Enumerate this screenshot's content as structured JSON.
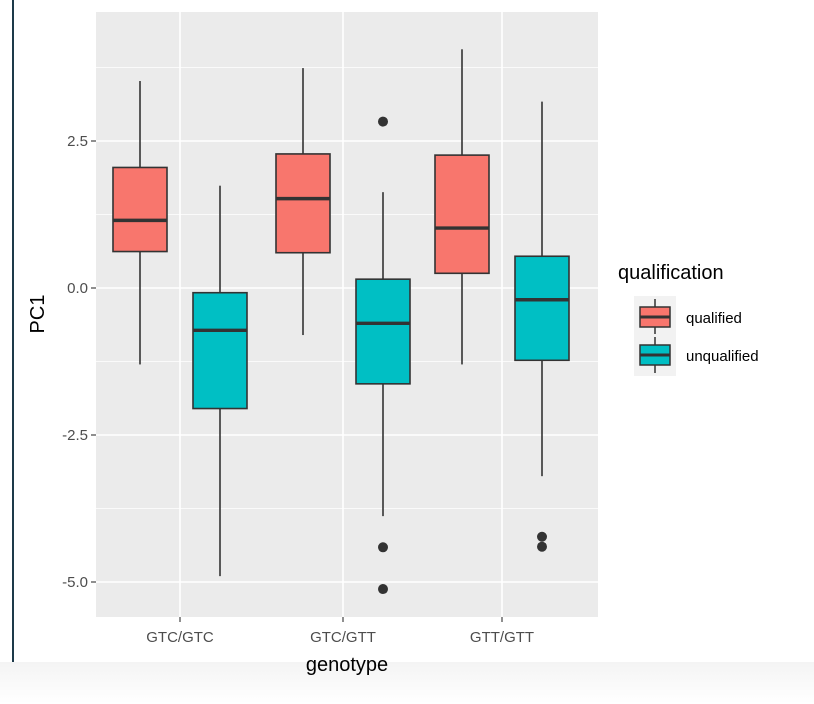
{
  "chart_data": {
    "type": "boxplot",
    "xlabel": "genotype",
    "ylabel": "PC1",
    "categories": [
      "GTC/GTC",
      "GTC/GTT",
      "GTT/GTT"
    ],
    "ylim": [
      -5.5,
      4.6
    ],
    "yticks": [
      2.5,
      0.0,
      -2.5,
      -5.0
    ],
    "ytick_labels": [
      "2.5",
      "0.0",
      "-2.5",
      "-5.0"
    ],
    "grid": true,
    "legend": {
      "title": "qualification",
      "position": "right"
    },
    "series": [
      {
        "name": "qualified",
        "color": "#F8766D",
        "boxes": [
          {
            "category": "GTC/GTC",
            "whisker_low": -1.3,
            "q1": 0.62,
            "median": 1.15,
            "q3": 2.05,
            "whisker_high": 3.52,
            "outliers": []
          },
          {
            "category": "GTC/GTT",
            "whisker_low": -0.8,
            "q1": 0.6,
            "median": 1.52,
            "q3": 2.28,
            "whisker_high": 3.74,
            "outliers": []
          },
          {
            "category": "GTT/GTT",
            "whisker_low": -1.3,
            "q1": 0.25,
            "median": 1.02,
            "q3": 2.26,
            "whisker_high": 4.06,
            "outliers": []
          }
        ]
      },
      {
        "name": "unqualified",
        "color": "#00BFC4",
        "boxes": [
          {
            "category": "GTC/GTC",
            "whisker_low": -4.9,
            "q1": -2.05,
            "median": -0.72,
            "q3": -0.08,
            "whisker_high": 1.74,
            "outliers": []
          },
          {
            "category": "GTC/GTT",
            "whisker_low": -3.88,
            "q1": -1.63,
            "median": -0.6,
            "q3": 0.15,
            "whisker_high": 1.63,
            "outliers": [
              2.83,
              -4.41,
              -5.12
            ]
          },
          {
            "category": "GTT/GTT",
            "whisker_low": -3.2,
            "q1": -1.23,
            "median": -0.2,
            "q3": 0.54,
            "whisker_high": 3.17,
            "outliers": [
              -4.23,
              -4.4
            ]
          }
        ]
      }
    ]
  }
}
